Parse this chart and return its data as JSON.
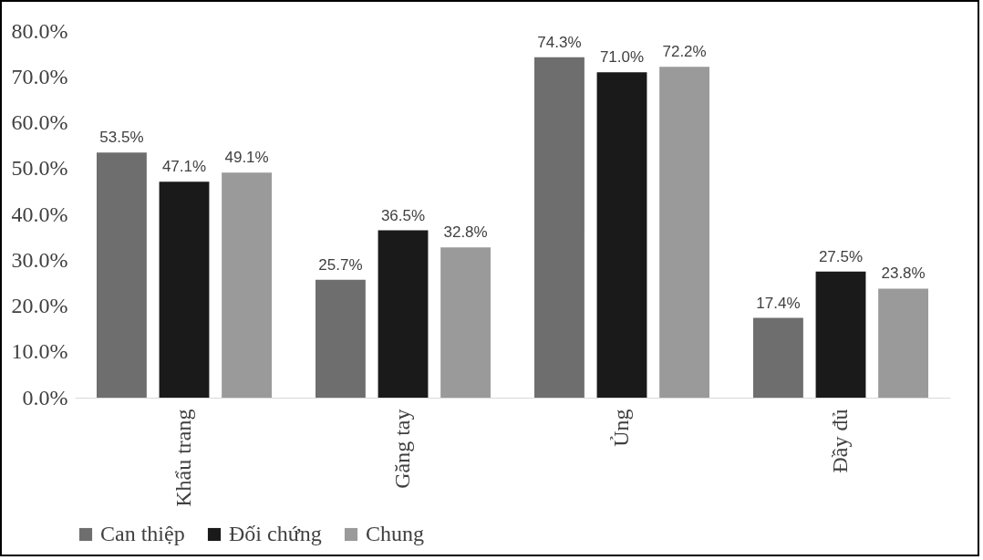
{
  "chart_data": {
    "type": "bar",
    "categories": [
      "Khẩu trang",
      "Găng tay",
      "Ủng",
      "Đầy đủ"
    ],
    "series": [
      {
        "name": "Can thiệp",
        "color": "#6e6e6e",
        "values": [
          53.5,
          25.7,
          74.3,
          17.4
        ],
        "value_labels": [
          "53.5%",
          "25.7%",
          "74.3%",
          "17.4%"
        ]
      },
      {
        "name": "Đối chứng",
        "color": "#1a1a1a",
        "values": [
          47.1,
          36.5,
          71.0,
          27.5
        ],
        "value_labels": [
          "47.1%",
          "36.5%",
          "71.0%",
          "27.5%"
        ]
      },
      {
        "name": "Chung",
        "color": "#9a9a9a",
        "values": [
          49.1,
          32.8,
          72.2,
          23.8
        ],
        "value_labels": [
          "49.1%",
          "32.8%",
          "72.2%",
          "23.8%"
        ]
      }
    ],
    "ylim": [
      0,
      80
    ],
    "yticks": [
      {
        "value": 0,
        "label": "0.0%"
      },
      {
        "value": 10,
        "label": "10.0%"
      },
      {
        "value": 20,
        "label": "20.0%"
      },
      {
        "value": 30,
        "label": "30.0%"
      },
      {
        "value": 40,
        "label": "40.0%"
      },
      {
        "value": 50,
        "label": "50.0%"
      },
      {
        "value": 60,
        "label": "60.0%"
      },
      {
        "value": 70,
        "label": "70.0%"
      },
      {
        "value": 80,
        "label": "80.0%"
      }
    ],
    "grid": false,
    "legend": "bottom"
  }
}
